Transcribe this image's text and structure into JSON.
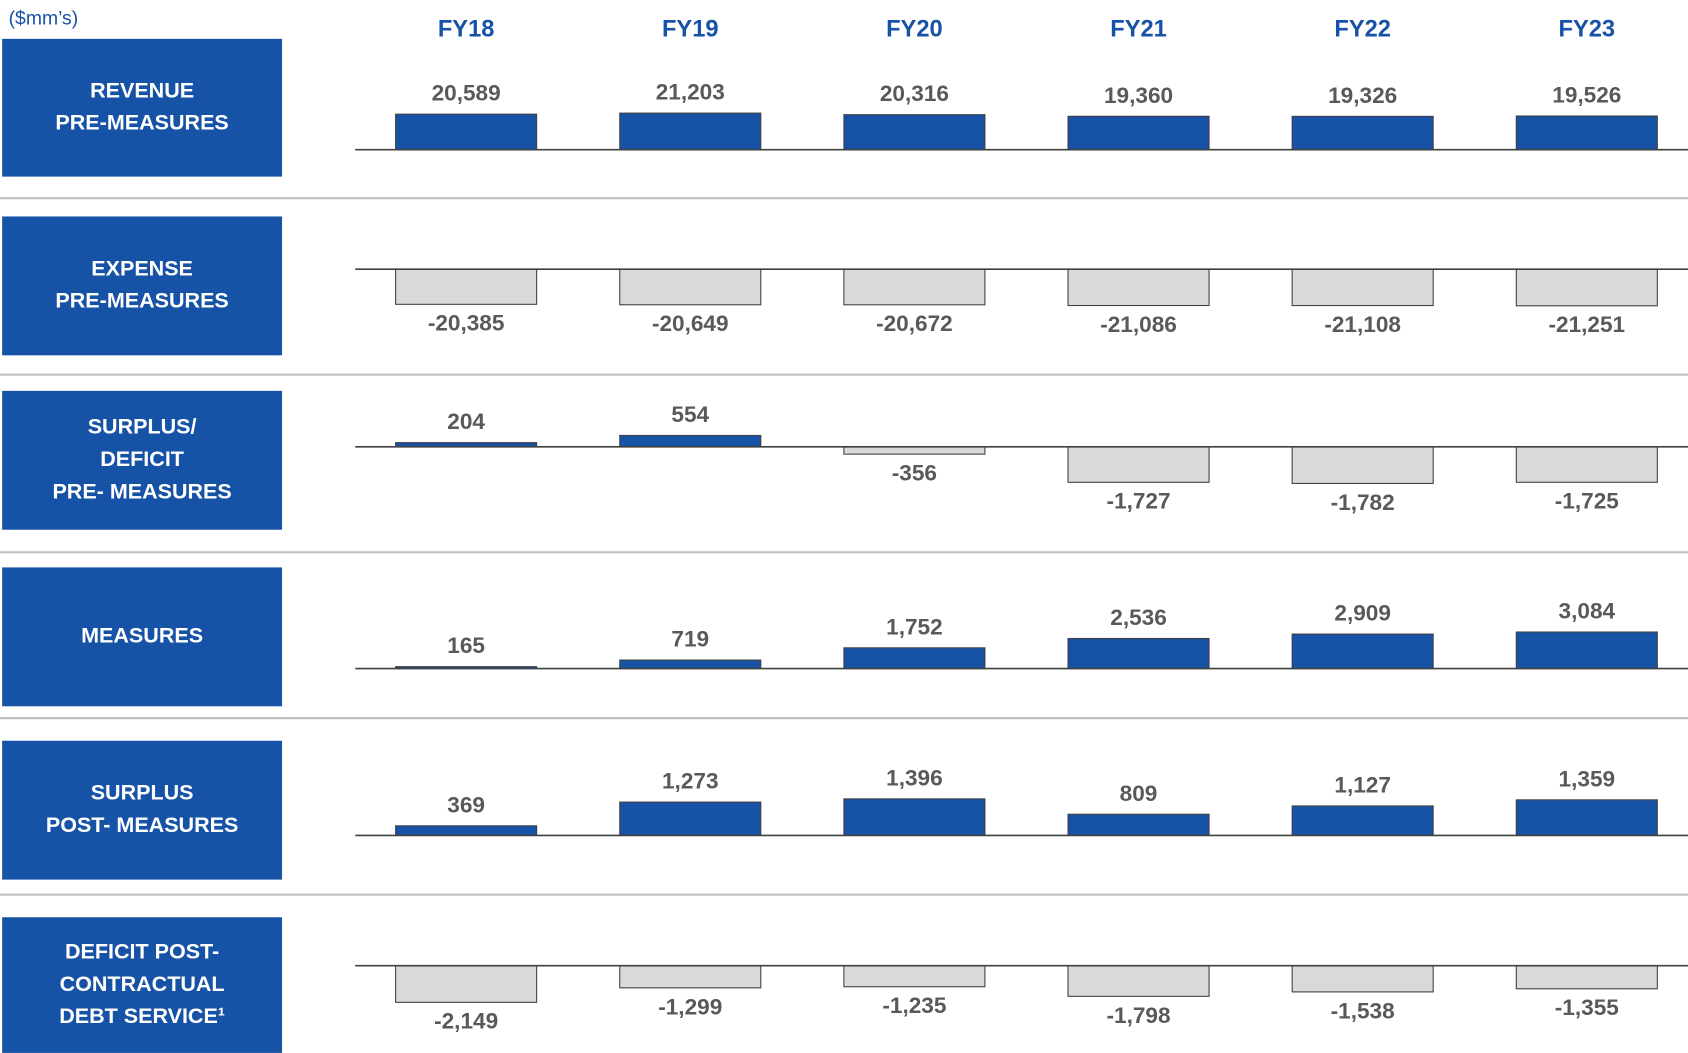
{
  "unit": "($mm’s)",
  "categories": [
    "FY18",
    "FY19",
    "FY20",
    "FY21",
    "FY22",
    "FY23"
  ],
  "chart_data": [
    {
      "type": "bar",
      "title": [
        "REVENUE",
        "PRE-MEASURES"
      ],
      "color": "#1652a6",
      "negative_color": "#d9d9d9",
      "values": [
        20589,
        21203,
        20316,
        19360,
        19326,
        19526
      ],
      "value_labels": [
        "20,589",
        "21,203",
        "20,316",
        "19,360",
        "19,326",
        "19,526"
      ]
    },
    {
      "type": "bar",
      "title": [
        "EXPENSE",
        "PRE-MEASURES"
      ],
      "color": "#1652a6",
      "negative_color": "#d9d9d9",
      "values": [
        -20385,
        -20649,
        -20672,
        -21086,
        -21108,
        -21251
      ],
      "value_labels": [
        "-20,385",
        "-20,649",
        "-20,672",
        "-21,086",
        "-21,108",
        "-21,251"
      ]
    },
    {
      "type": "bar",
      "title": [
        "SURPLUS/",
        "DEFICIT",
        "PRE-  MEASURES"
      ],
      "color": "#1652a6",
      "negative_color": "#d9d9d9",
      "values": [
        204,
        554,
        -356,
        -1727,
        -1782,
        -1725
      ],
      "value_labels": [
        "204",
        "554",
        "-356",
        "-1,727",
        "-1,782",
        "-1,725"
      ]
    },
    {
      "type": "bar",
      "title": [
        "MEASURES"
      ],
      "color": "#1652a6",
      "negative_color": "#d9d9d9",
      "values": [
        165,
        719,
        1752,
        2536,
        2909,
        3084
      ],
      "value_labels": [
        "165",
        "719",
        "1,752",
        "2,536",
        "2,909",
        "3,084"
      ]
    },
    {
      "type": "bar",
      "title": [
        "SURPLUS",
        "POST- MEASURES"
      ],
      "color": "#1652a6",
      "negative_color": "#d9d9d9",
      "values": [
        369,
        1273,
        1396,
        809,
        1127,
        1359
      ],
      "value_labels": [
        "369",
        "1,273",
        "1,396",
        "809",
        "1,127",
        "1,359"
      ]
    },
    {
      "type": "bar",
      "title": [
        "DEFICIT POST-",
        "CONTRACTUAL",
        "DEBT SERVICE¹"
      ],
      "color": "#1652a6",
      "negative_color": "#d9d9d9",
      "values": [
        -2149,
        -1299,
        -1235,
        -1798,
        -1538,
        -1355
      ],
      "value_labels": [
        "-2,149",
        "-1,299",
        "-1,235",
        "-1,798",
        "-1,538",
        "-1,355"
      ]
    }
  ]
}
